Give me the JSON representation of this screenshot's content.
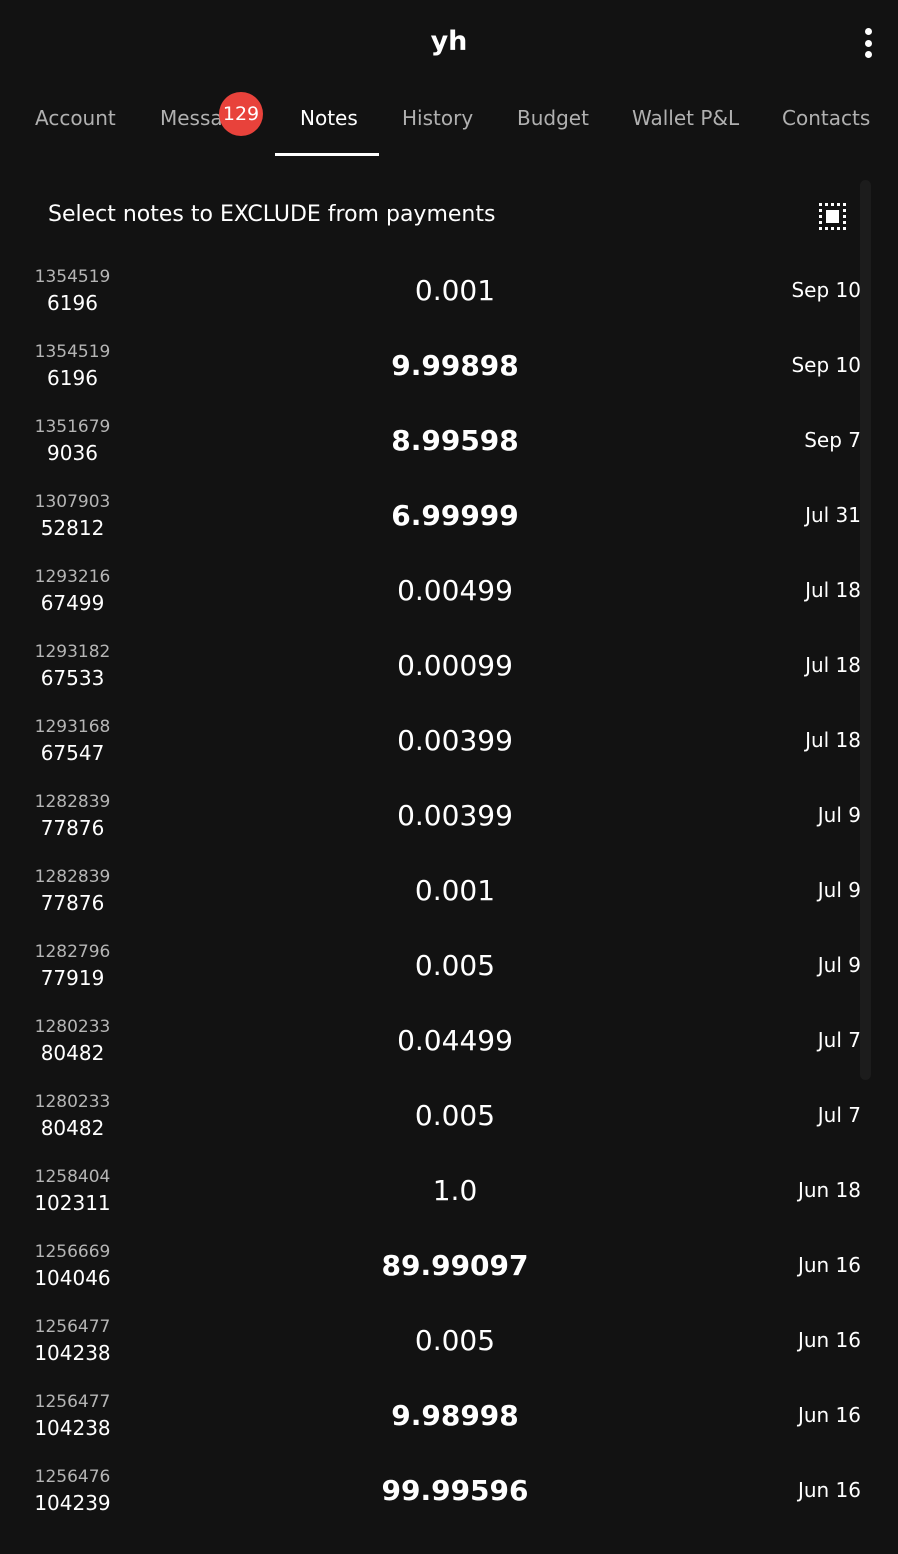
{
  "app_bar": {
    "title": "yh",
    "menu_icon": "more-vertical-icon"
  },
  "tabs": [
    {
      "label": "Account",
      "active": false
    },
    {
      "label": "Messages",
      "active": false,
      "badge": "129"
    },
    {
      "label": "Notes",
      "active": true
    },
    {
      "label": "History",
      "active": false
    },
    {
      "label": "Budget",
      "active": false
    },
    {
      "label": "Wallet P&L",
      "active": false
    },
    {
      "label": "Contacts",
      "active": false
    }
  ],
  "notes": {
    "header": "Select notes to EXCLUDE from payments",
    "select_all_icon": "select-all-icon",
    "rows": [
      {
        "height": "1354519",
        "id": "6196",
        "amount": "0.001",
        "bold": false,
        "date": "Sep 10"
      },
      {
        "height": "1354519",
        "id": "6196",
        "amount": "9.99898",
        "bold": true,
        "date": "Sep 10"
      },
      {
        "height": "1351679",
        "id": "9036",
        "amount": "8.99598",
        "bold": true,
        "date": "Sep 7"
      },
      {
        "height": "1307903",
        "id": "52812",
        "amount": "6.99999",
        "bold": true,
        "date": "Jul 31"
      },
      {
        "height": "1293216",
        "id": "67499",
        "amount": "0.00499",
        "bold": false,
        "date": "Jul 18"
      },
      {
        "height": "1293182",
        "id": "67533",
        "amount": "0.00099",
        "bold": false,
        "date": "Jul 18"
      },
      {
        "height": "1293168",
        "id": "67547",
        "amount": "0.00399",
        "bold": false,
        "date": "Jul 18"
      },
      {
        "height": "1282839",
        "id": "77876",
        "amount": "0.00399",
        "bold": false,
        "date": "Jul 9"
      },
      {
        "height": "1282839",
        "id": "77876",
        "amount": "0.001",
        "bold": false,
        "date": "Jul 9"
      },
      {
        "height": "1282796",
        "id": "77919",
        "amount": "0.005",
        "bold": false,
        "date": "Jul 9"
      },
      {
        "height": "1280233",
        "id": "80482",
        "amount": "0.04499",
        "bold": false,
        "date": "Jul 7"
      },
      {
        "height": "1280233",
        "id": "80482",
        "amount": "0.005",
        "bold": false,
        "date": "Jul 7"
      },
      {
        "height": "1258404",
        "id": "102311",
        "amount": "1.0",
        "bold": false,
        "date": "Jun 18"
      },
      {
        "height": "1256669",
        "id": "104046",
        "amount": "89.99097",
        "bold": true,
        "date": "Jun 16"
      },
      {
        "height": "1256477",
        "id": "104238",
        "amount": "0.005",
        "bold": false,
        "date": "Jun 16"
      },
      {
        "height": "1256477",
        "id": "104238",
        "amount": "9.98998",
        "bold": true,
        "date": "Jun 16"
      },
      {
        "height": "1256476",
        "id": "104239",
        "amount": "99.99596",
        "bold": true,
        "date": "Jun 16"
      }
    ]
  }
}
